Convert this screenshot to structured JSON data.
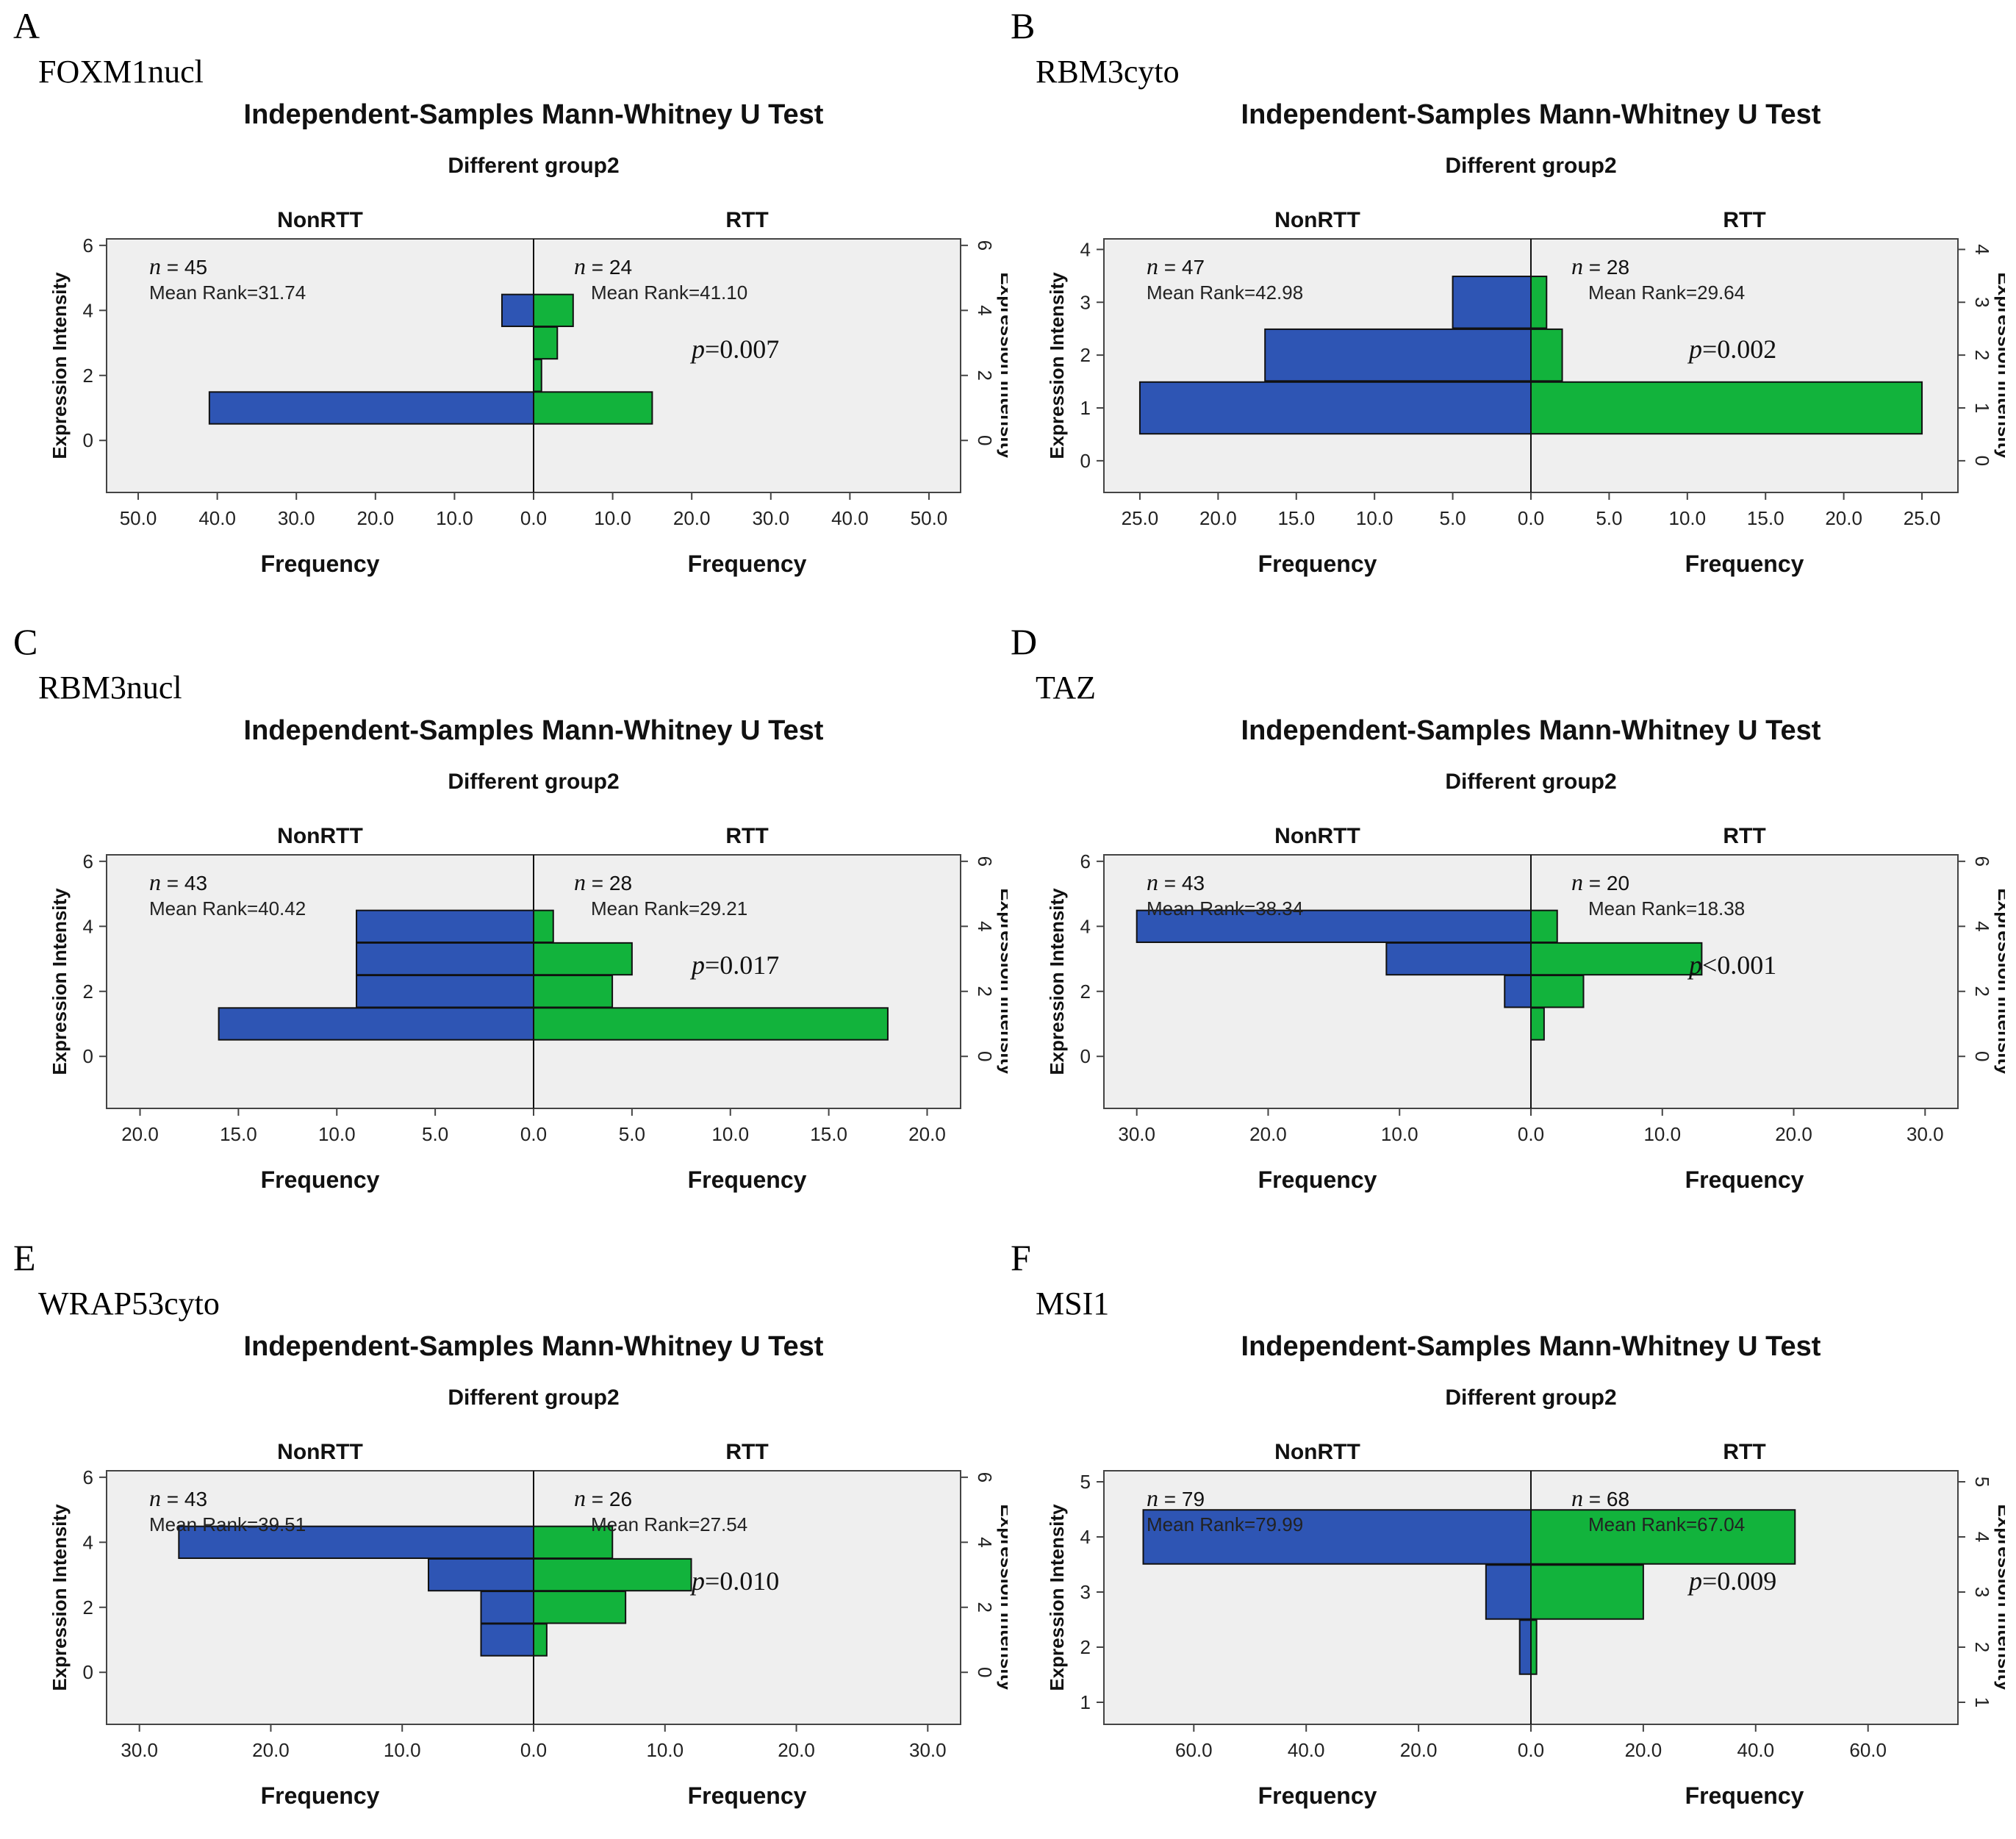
{
  "figure": {
    "test_title": "Independent-Samples Mann-Whitney U Test",
    "subtitle": "Different group2",
    "left_group": "NonRTT",
    "right_group": "RTT",
    "x_label": "Frequency",
    "y_label": "Expression Intensity"
  },
  "colors": {
    "nonrtt": "#2e55b4",
    "rtt": "#12b33c",
    "plot_bg": "#efefef"
  },
  "chart_data": [
    {
      "panel_label": "A",
      "gene": "FOXM1nucl",
      "type": "bar",
      "y_ticks": [
        "0",
        "2",
        "4",
        "6"
      ],
      "y_range": [
        -1.6,
        6.2
      ],
      "y_right_ticks": [
        "0",
        "2",
        "4",
        "6"
      ],
      "x_max": 54,
      "x_ticks": [
        50,
        40,
        30,
        20,
        10,
        0,
        10,
        20,
        30,
        40,
        50
      ],
      "x_tick_labels": [
        "50.0",
        "40.0",
        "30.0",
        "20.0",
        "10.0",
        "0.0",
        "10.0",
        "20.0",
        "30.0",
        "40.0",
        "50.0"
      ],
      "categories": [
        1,
        2,
        3,
        4
      ],
      "series": [
        {
          "name": "NonRTT",
          "values": [
            41,
            0,
            0,
            4
          ]
        },
        {
          "name": "RTT",
          "values": [
            15,
            1,
            3,
            5
          ]
        }
      ],
      "n_left": "45",
      "mean_rank_left": "Mean Rank=31.74",
      "n_right": "24",
      "mean_rank_right": "Mean Rank=41.10",
      "p_value": "=0.007"
    },
    {
      "panel_label": "B",
      "gene": "RBM3cyto",
      "type": "bar",
      "y_ticks": [
        "0",
        "1",
        "2",
        "3",
        "4"
      ],
      "y_range": [
        -0.6,
        4.2
      ],
      "y_right_ticks": [
        "0",
        "1",
        "2",
        "3",
        "4"
      ],
      "x_max": 27.3,
      "x_ticks": [
        25,
        20,
        15,
        10,
        5,
        0,
        5,
        10,
        15,
        20,
        25
      ],
      "x_tick_labels": [
        "25.0",
        "20.0",
        "15.0",
        "10.0",
        "5.0",
        "0.0",
        "5.0",
        "10.0",
        "15.0",
        "20.0",
        "25.0"
      ],
      "categories": [
        1,
        2,
        3
      ],
      "series": [
        {
          "name": "NonRTT",
          "values": [
            25,
            17,
            5
          ]
        },
        {
          "name": "RTT",
          "values": [
            25,
            2,
            1
          ]
        }
      ],
      "n_left": "47",
      "mean_rank_left": "Mean Rank=42.98",
      "n_right": "28",
      "mean_rank_right": "Mean Rank=29.64",
      "p_value": "=0.002"
    },
    {
      "panel_label": "C",
      "gene": "RBM3nucl",
      "type": "bar",
      "y_ticks": [
        "0",
        "2",
        "4",
        "6"
      ],
      "y_range": [
        -1.6,
        6.2
      ],
      "y_right_ticks": [
        "0",
        "2",
        "4",
        "6"
      ],
      "x_max": 21.7,
      "x_ticks": [
        20,
        15,
        10,
        5,
        0,
        5,
        10,
        15,
        20
      ],
      "x_tick_labels": [
        "20.0",
        "15.0",
        "10.0",
        "5.0",
        "0.0",
        "5.0",
        "10.0",
        "15.0",
        "20.0"
      ],
      "categories": [
        1,
        2,
        3,
        4
      ],
      "series": [
        {
          "name": "NonRTT",
          "values": [
            16,
            9,
            9,
            9
          ]
        },
        {
          "name": "RTT",
          "values": [
            18,
            4,
            5,
            1
          ]
        }
      ],
      "n_left": "43",
      "mean_rank_left": "Mean Rank=40.42",
      "n_right": "28",
      "mean_rank_right": "Mean Rank=29.21",
      "p_value": "=0.017"
    },
    {
      "panel_label": "D",
      "gene": "TAZ",
      "type": "bar",
      "y_ticks": [
        "0",
        "2",
        "4",
        "6"
      ],
      "y_range": [
        -1.6,
        6.2
      ],
      "y_right_ticks": [
        "0",
        "2",
        "4",
        "6"
      ],
      "x_max": 32.5,
      "x_ticks": [
        30,
        20,
        10,
        0,
        10,
        20,
        30
      ],
      "x_tick_labels": [
        "30.0",
        "20.0",
        "10.0",
        "0.0",
        "10.0",
        "20.0",
        "30.0"
      ],
      "categories": [
        1,
        2,
        3,
        4
      ],
      "series": [
        {
          "name": "NonRTT",
          "values": [
            0,
            2,
            11,
            30
          ]
        },
        {
          "name": "RTT",
          "values": [
            1,
            4,
            13,
            2
          ]
        }
      ],
      "n_left": "43",
      "mean_rank_left": "Mean Rank=38.34",
      "n_right": "20",
      "mean_rank_right": "Mean Rank=18.38",
      "p_value": "<0.001"
    },
    {
      "panel_label": "E",
      "gene": "WRAP53cyto",
      "type": "bar",
      "y_ticks": [
        "0",
        "2",
        "4",
        "6"
      ],
      "y_range": [
        -1.6,
        6.2
      ],
      "y_right_ticks": [
        "0",
        "2",
        "4",
        "6"
      ],
      "x_max": 32.5,
      "x_ticks": [
        30,
        20,
        10,
        0,
        10,
        20,
        30
      ],
      "x_tick_labels": [
        "30.0",
        "20.0",
        "10.0",
        "0.0",
        "10.0",
        "20.0",
        "30.0"
      ],
      "categories": [
        1,
        2,
        3,
        4
      ],
      "series": [
        {
          "name": "NonRTT",
          "values": [
            4,
            4,
            8,
            27
          ]
        },
        {
          "name": "RTT",
          "values": [
            1,
            7,
            12,
            6
          ]
        }
      ],
      "n_left": "43",
      "mean_rank_left": "Mean Rank=39.51",
      "n_right": "26",
      "mean_rank_right": "Mean Rank=27.54",
      "p_value": "=0.010"
    },
    {
      "panel_label": "F",
      "gene": "MSI1",
      "type": "bar",
      "y_ticks": [
        "1",
        "2",
        "3",
        "4",
        "5"
      ],
      "y_range": [
        0.6,
        5.2
      ],
      "y_right_ticks": [
        "1",
        "2",
        "3",
        "4",
        "5"
      ],
      "x_max": 76,
      "x_ticks": [
        60,
        40,
        20,
        0,
        20,
        40,
        60
      ],
      "x_tick_labels": [
        "60.0",
        "40.0",
        "20.0",
        "0.0",
        "20.0",
        "40.0",
        "60.0"
      ],
      "categories": [
        2,
        3,
        4
      ],
      "series": [
        {
          "name": "NonRTT",
          "values": [
            2,
            8,
            69
          ]
        },
        {
          "name": "RTT",
          "values": [
            1,
            20,
            47
          ]
        }
      ],
      "n_left": "79",
      "mean_rank_left": "Mean Rank=79.99",
      "n_right": "68",
      "mean_rank_right": "Mean Rank=67.04",
      "p_value": "=0.009"
    }
  ]
}
